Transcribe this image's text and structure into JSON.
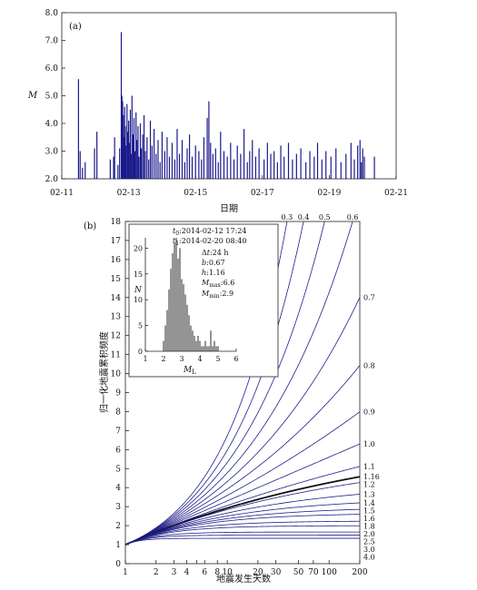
{
  "chart_data": [
    {
      "type": "bar",
      "panel_label": "(a)",
      "xlabel": "日期",
      "ylabel": "M",
      "x_ticks": [
        "02-11",
        "02-13",
        "02-15",
        "02-17",
        "02-19",
        "02-21"
      ],
      "x_tick_days": [
        11,
        13,
        15,
        17,
        19,
        21
      ],
      "xlim_days": [
        11,
        21
      ],
      "y_ticks": [
        "2.0",
        "3.0",
        "4.0",
        "5.0",
        "6.0",
        "7.0",
        "8.0"
      ],
      "ylim": [
        2.0,
        8.0
      ],
      "bar_color": "#1a1a8c",
      "events": [
        {
          "day": 11.5,
          "m": 5.6
        },
        {
          "day": 11.55,
          "m": 3.0
        },
        {
          "day": 11.62,
          "m": 2.4
        },
        {
          "day": 11.7,
          "m": 2.6
        },
        {
          "day": 11.98,
          "m": 3.1
        },
        {
          "day": 12.05,
          "m": 3.7
        },
        {
          "day": 12.45,
          "m": 2.7
        },
        {
          "day": 12.55,
          "m": 2.8
        },
        {
          "day": 12.58,
          "m": 3.5
        },
        {
          "day": 12.68,
          "m": 2.5
        },
        {
          "day": 12.73,
          "m": 3.1
        },
        {
          "day": 12.78,
          "m": 7.3
        },
        {
          "day": 12.8,
          "m": 5.0
        },
        {
          "day": 12.82,
          "m": 4.8
        },
        {
          "day": 12.84,
          "m": 4.3
        },
        {
          "day": 12.86,
          "m": 3.5
        },
        {
          "day": 12.88,
          "m": 4.6
        },
        {
          "day": 12.9,
          "m": 3.9
        },
        {
          "day": 12.92,
          "m": 3.2
        },
        {
          "day": 12.95,
          "m": 4.7
        },
        {
          "day": 12.97,
          "m": 3.7
        },
        {
          "day": 13.0,
          "m": 4.1
        },
        {
          "day": 13.03,
          "m": 3.3
        },
        {
          "day": 13.05,
          "m": 4.5
        },
        {
          "day": 13.08,
          "m": 2.9
        },
        {
          "day": 13.1,
          "m": 5.0
        },
        {
          "day": 13.13,
          "m": 3.6
        },
        {
          "day": 13.16,
          "m": 4.2
        },
        {
          "day": 13.19,
          "m": 3.0
        },
        {
          "day": 13.22,
          "m": 4.4
        },
        {
          "day": 13.25,
          "m": 3.4
        },
        {
          "day": 13.28,
          "m": 3.9
        },
        {
          "day": 13.31,
          "m": 2.8
        },
        {
          "day": 13.35,
          "m": 4.0
        },
        {
          "day": 13.38,
          "m": 3.1
        },
        {
          "day": 13.42,
          "m": 3.6
        },
        {
          "day": 13.46,
          "m": 4.3
        },
        {
          "day": 13.5,
          "m": 3.0
        },
        {
          "day": 13.55,
          "m": 3.5
        },
        {
          "day": 13.6,
          "m": 2.7
        },
        {
          "day": 13.65,
          "m": 4.1
        },
        {
          "day": 13.7,
          "m": 3.2
        },
        {
          "day": 13.76,
          "m": 3.8
        },
        {
          "day": 13.82,
          "m": 2.9
        },
        {
          "day": 13.88,
          "m": 3.4
        },
        {
          "day": 13.94,
          "m": 2.6
        },
        {
          "day": 14.0,
          "m": 3.7
        },
        {
          "day": 14.08,
          "m": 3.0
        },
        {
          "day": 14.15,
          "m": 3.5
        },
        {
          "day": 14.22,
          "m": 2.8
        },
        {
          "day": 14.3,
          "m": 3.3
        },
        {
          "day": 14.38,
          "m": 2.7
        },
        {
          "day": 14.45,
          "m": 3.8
        },
        {
          "day": 14.52,
          "m": 2.9
        },
        {
          "day": 14.6,
          "m": 3.4
        },
        {
          "day": 14.68,
          "m": 2.6
        },
        {
          "day": 14.75,
          "m": 3.1
        },
        {
          "day": 14.82,
          "m": 3.6
        },
        {
          "day": 14.9,
          "m": 2.8
        },
        {
          "day": 15.0,
          "m": 3.2
        },
        {
          "day": 15.1,
          "m": 3.0
        },
        {
          "day": 15.18,
          "m": 2.7
        },
        {
          "day": 15.25,
          "m": 3.5
        },
        {
          "day": 15.35,
          "m": 4.2
        },
        {
          "day": 15.4,
          "m": 4.8
        },
        {
          "day": 15.45,
          "m": 3.3
        },
        {
          "day": 15.52,
          "m": 2.9
        },
        {
          "day": 15.6,
          "m": 3.1
        },
        {
          "day": 15.68,
          "m": 2.6
        },
        {
          "day": 15.75,
          "m": 3.7
        },
        {
          "day": 15.85,
          "m": 3.0
        },
        {
          "day": 15.95,
          "m": 2.8
        },
        {
          "day": 16.05,
          "m": 3.3
        },
        {
          "day": 16.15,
          "m": 2.7
        },
        {
          "day": 16.25,
          "m": 3.2
        },
        {
          "day": 16.35,
          "m": 2.9
        },
        {
          "day": 16.45,
          "m": 3.8
        },
        {
          "day": 16.55,
          "m": 2.6
        },
        {
          "day": 16.62,
          "m": 3.0
        },
        {
          "day": 16.7,
          "m": 3.4
        },
        {
          "day": 16.8,
          "m": 2.8
        },
        {
          "day": 16.9,
          "m": 3.1
        },
        {
          "day": 17.05,
          "m": 2.7
        },
        {
          "day": 17.15,
          "m": 3.3
        },
        {
          "day": 17.25,
          "m": 2.9
        },
        {
          "day": 17.35,
          "m": 3.0
        },
        {
          "day": 17.45,
          "m": 2.6
        },
        {
          "day": 17.55,
          "m": 3.2
        },
        {
          "day": 17.65,
          "m": 2.8
        },
        {
          "day": 17.78,
          "m": 3.3
        },
        {
          "day": 17.9,
          "m": 2.7
        },
        {
          "day": 18.02,
          "m": 2.9
        },
        {
          "day": 18.15,
          "m": 3.1
        },
        {
          "day": 18.3,
          "m": 2.6
        },
        {
          "day": 18.42,
          "m": 3.0
        },
        {
          "day": 18.55,
          "m": 2.8
        },
        {
          "day": 18.65,
          "m": 3.3
        },
        {
          "day": 18.78,
          "m": 2.7
        },
        {
          "day": 18.9,
          "m": 3.0
        },
        {
          "day": 19.05,
          "m": 2.8
        },
        {
          "day": 19.2,
          "m": 3.1
        },
        {
          "day": 19.35,
          "m": 2.6
        },
        {
          "day": 19.5,
          "m": 2.9
        },
        {
          "day": 19.65,
          "m": 3.3
        },
        {
          "day": 19.75,
          "m": 2.7
        },
        {
          "day": 19.85,
          "m": 3.2
        },
        {
          "day": 19.92,
          "m": 3.4
        },
        {
          "day": 19.96,
          "m": 2.6
        },
        {
          "day": 20.0,
          "m": 3.1
        },
        {
          "day": 20.05,
          "m": 2.8
        },
        {
          "day": 20.35,
          "m": 2.8
        }
      ]
    },
    {
      "type": "line",
      "panel_label": "(b)",
      "xlabel": "地震发生天数",
      "ylabel": "归一化地震累积频度",
      "x_scale": "log",
      "xlim": [
        1,
        200
      ],
      "ylim": [
        0,
        18
      ],
      "x_ticks": [
        1,
        2,
        3,
        4,
        5,
        6,
        8,
        10,
        20,
        30,
        50,
        70,
        100,
        200
      ],
      "x_tick_labels": [
        "1",
        "2",
        "3",
        "4",
        "6",
        "8",
        "10",
        "20",
        "30",
        "50",
        "70",
        "100",
        "200"
      ],
      "x_tick_label_values": [
        1,
        2,
        3,
        4,
        6,
        8,
        10,
        20,
        30,
        50,
        70,
        100,
        200
      ],
      "y_ticks": [
        "0",
        "1",
        "2",
        "3",
        "4",
        "5",
        "6",
        "7",
        "8",
        "9",
        "10",
        "11",
        "12",
        "13",
        "14",
        "15",
        "16",
        "17",
        "18"
      ],
      "curve_color": "#1f1f8a",
      "highlight_color": "#111111",
      "highlight_p": 1.16,
      "p_values": [
        0.3,
        0.4,
        0.5,
        0.6,
        0.7,
        0.8,
        0.9,
        1.0,
        1.1,
        1.16,
        1.2,
        1.3,
        1.4,
        1.5,
        1.6,
        1.8,
        2.0,
        2.5,
        3.0,
        4.0
      ],
      "curve_labels": {
        "top": [
          "0.3",
          "0.4",
          "0.5",
          "0.6"
        ],
        "right": [
          "0.7",
          "0.8",
          "0.9",
          "1.0",
          "1.1",
          "1.16",
          "1.2",
          "1.3",
          "1.4",
          "1.5",
          "1.6",
          "1.8",
          "2.0",
          "2.5",
          "3.0",
          "4.0"
        ]
      },
      "inset": {
        "type": "bar",
        "xlabel": "M",
        "xlabel_sub": "L",
        "ylabel": "N",
        "xlim": [
          1,
          6
        ],
        "ylim": [
          0,
          22
        ],
        "x_ticks": [
          "1",
          "2",
          "3",
          "4",
          "5",
          "6"
        ],
        "y_ticks": [
          "0",
          "5",
          "10",
          "15",
          "20"
        ],
        "magnitudes": [
          2.0,
          2.1,
          2.2,
          2.3,
          2.4,
          2.5,
          2.6,
          2.7,
          2.8,
          2.9,
          3.0,
          3.1,
          3.2,
          3.3,
          3.4,
          3.5,
          3.6,
          3.7,
          3.8,
          3.9,
          4.0,
          4.1,
          4.2,
          4.3,
          4.4,
          4.5,
          4.6,
          4.7,
          4.8,
          4.9,
          5.0
        ],
        "counts": [
          2,
          5,
          8,
          12,
          16,
          19,
          21,
          22,
          18,
          20,
          14,
          13,
          11,
          9,
          7,
          5,
          4,
          3,
          2,
          3,
          2,
          1,
          1,
          2,
          1,
          1,
          4,
          1,
          2,
          1,
          1
        ],
        "params": {
          "t0": "2014-02-12 17:24",
          "t1": "2014-02-20 08:40",
          "dt": "24 h",
          "b": "0.67",
          "h": "1.16",
          "m_max": "6.6",
          "m_min": "2.9"
        }
      }
    }
  ]
}
